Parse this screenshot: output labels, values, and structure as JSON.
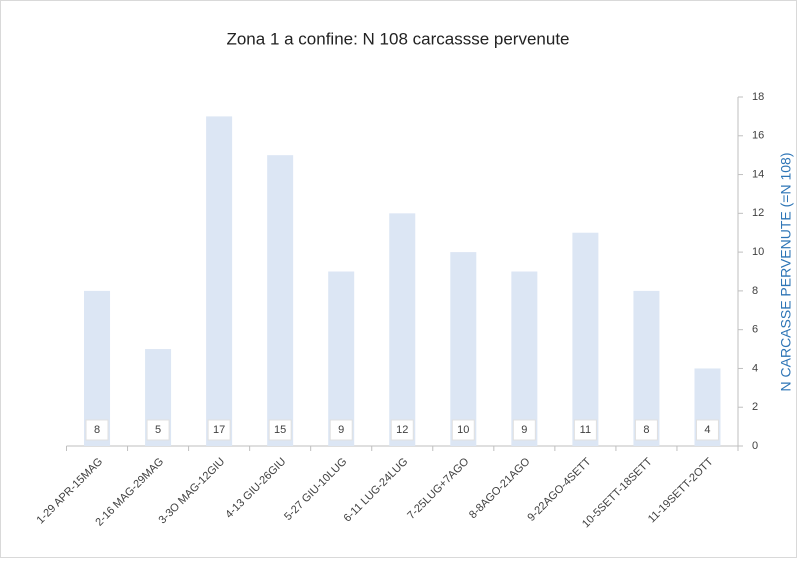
{
  "chart_data": {
    "type": "bar",
    "title": "Zona 1 a confine: N 108 carcassse pervenute",
    "y_axis_label": "N CARCASSE PERVENUTE (=N 108)",
    "categories": [
      "1-29 APR-15MAG",
      "2-16 MAG-29MAG",
      "3-3O MAG-12GIU",
      "4-13 GIU-26GIU",
      "5-27 GIU-10LUG",
      "6-11 LUG-24LUG",
      "7-25LUG+7AGO",
      "8-8AGO-21AGO",
      "9-22AGO-4SETT",
      "10-5SETT-18SETT",
      "11-19SETT-2OTT"
    ],
    "values": [
      8,
      5,
      17,
      15,
      9,
      12,
      10,
      9,
      11,
      8,
      4
    ],
    "color": "#dce6f4",
    "ylim": [
      0,
      18
    ],
    "yticks": [
      0,
      2,
      4,
      6,
      8,
      10,
      12,
      14,
      16,
      18
    ]
  }
}
